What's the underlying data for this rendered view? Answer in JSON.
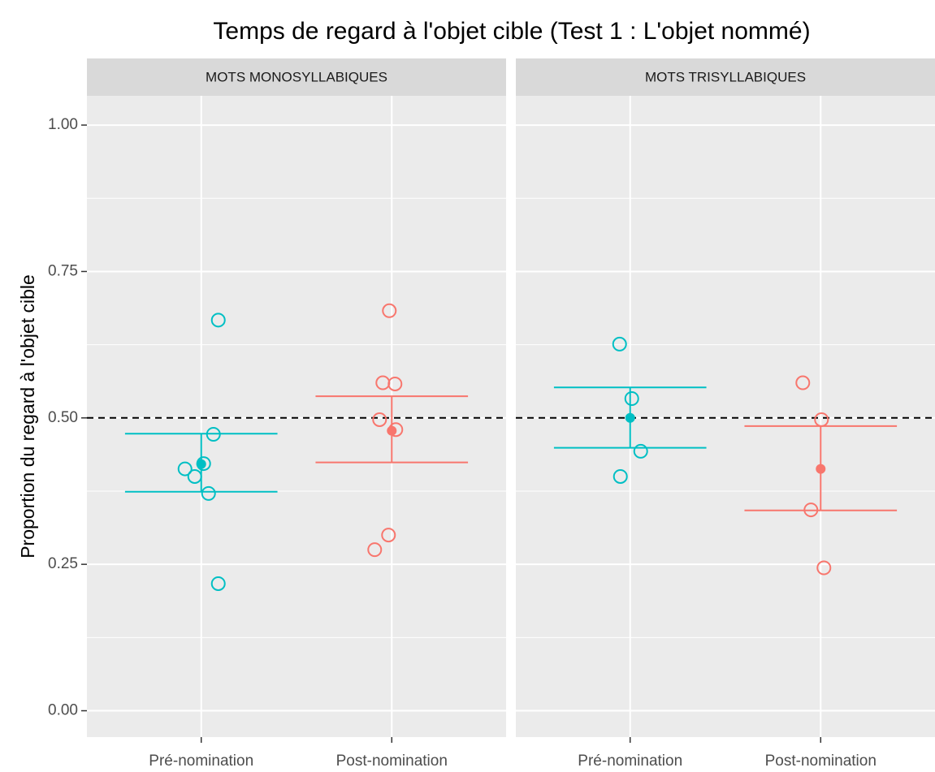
{
  "chart_data": {
    "type": "dot-errorbar",
    "title": "Temps de regard à l'objet cible (Test 1 : L'objet nommé)",
    "y_label": "Proportion du regard à l'objet cible",
    "ylim": [
      -0.045,
      1.05
    ],
    "yticks": [
      {
        "value": 0,
        "label": "0.00"
      },
      {
        "value": 0.25,
        "label": "0.25"
      },
      {
        "value": 0.5,
        "label": "0.50"
      },
      {
        "value": 0.75,
        "label": "0.75"
      },
      {
        "value": 1,
        "label": "1.00"
      }
    ],
    "reference_line": 0.5,
    "grid": true,
    "facets": [
      {
        "label": "MOTS MONOSYLLABIQUES",
        "groups": [
          {
            "category": "Pré-nomination",
            "color": "#00BFC4",
            "points": [
              0.667,
              0.472,
              0.413,
              0.4,
              0.422,
              0.371,
              0.217
            ],
            "mean": 0.421,
            "error_low": 0.374,
            "error_high": 0.473
          },
          {
            "category": "Post-nomination",
            "color": "#F8766D",
            "points": [
              0.683,
              0.56,
              0.558,
              0.497,
              0.48,
              0.3,
              0.275
            ],
            "mean": 0.478,
            "error_low": 0.424,
            "error_high": 0.537
          }
        ]
      },
      {
        "label": "MOTS TRISYLLABIQUES",
        "groups": [
          {
            "category": "Pré-nomination",
            "color": "#00BFC4",
            "points": [
              0.626,
              0.533,
              0.443,
              0.4
            ],
            "mean": 0.5,
            "error_low": 0.449,
            "error_high": 0.552
          },
          {
            "category": "Post-nomination",
            "color": "#F8766D",
            "points": [
              0.56,
              0.497,
              0.343,
              0.244
            ],
            "mean": 0.413,
            "error_low": 0.342,
            "error_high": 0.486
          }
        ]
      }
    ]
  }
}
